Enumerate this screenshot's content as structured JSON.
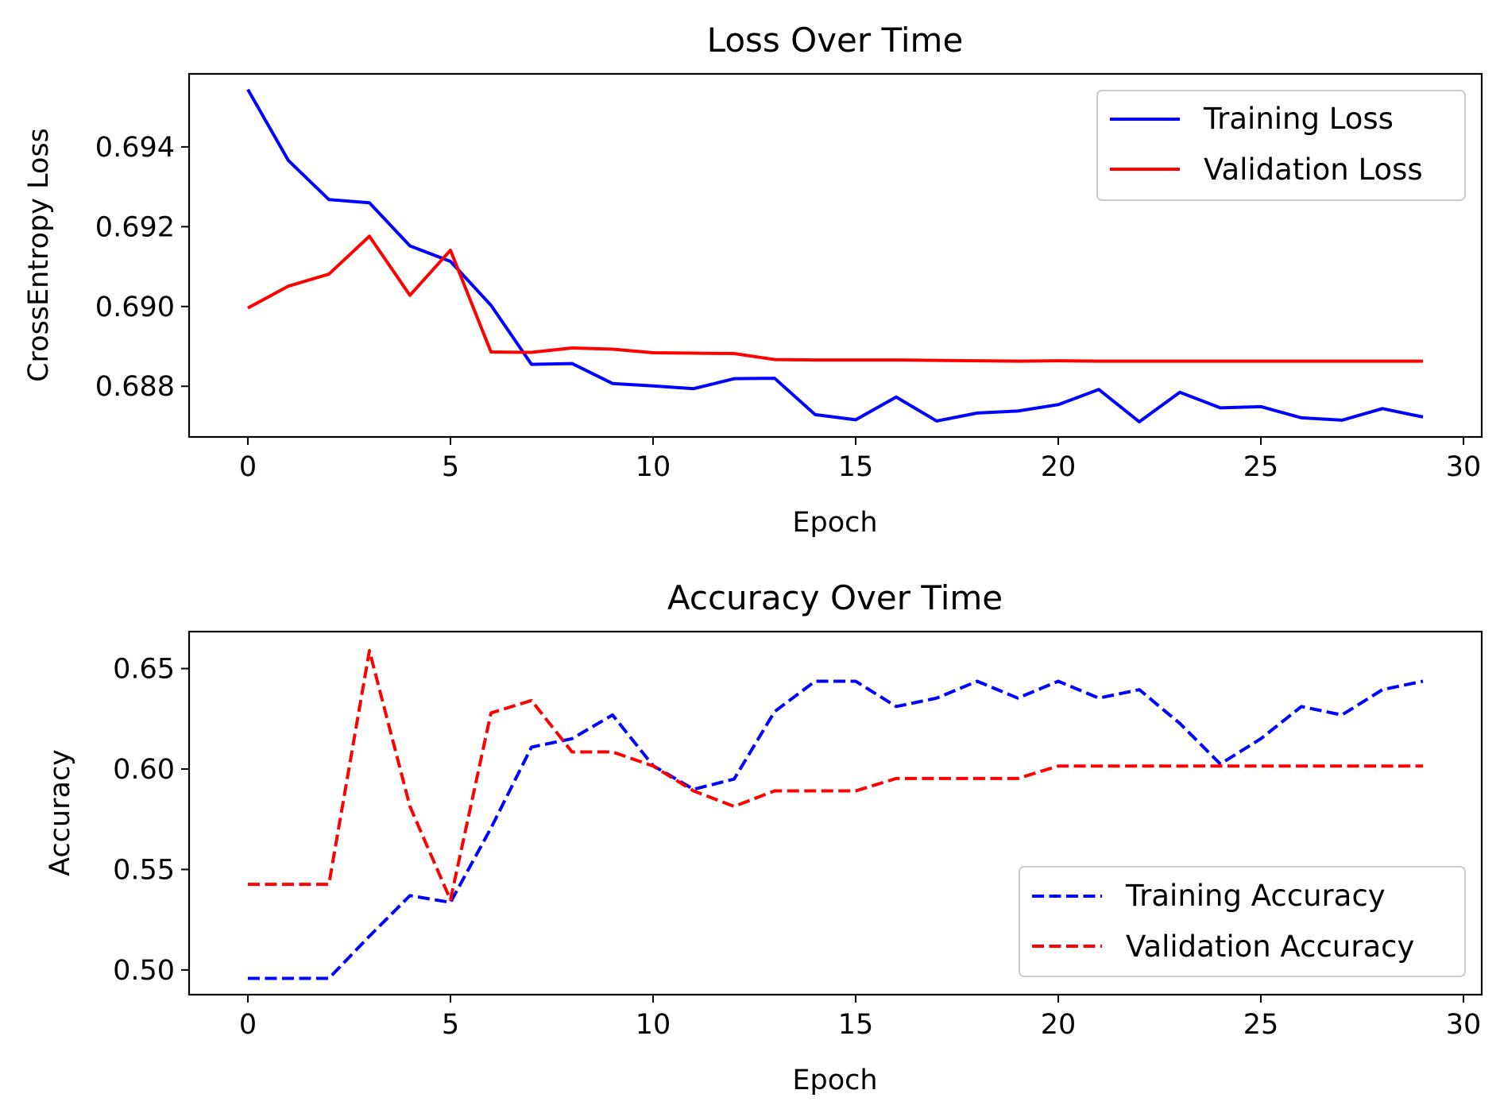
{
  "chart_data": [
    {
      "type": "line",
      "title": "Loss Over Time",
      "xlabel": "Epoch",
      "ylabel": "CrossEntropy Loss",
      "xlim": [
        -1.45,
        30.45
      ],
      "ylim": [
        0.68673,
        0.69583
      ],
      "xticks": [
        0,
        5,
        10,
        15,
        20,
        25,
        30
      ],
      "xtick_labels": [
        "0",
        "5",
        "10",
        "15",
        "20",
        "25",
        "30"
      ],
      "yticks": [
        0.688,
        0.69,
        0.692,
        0.694
      ],
      "ytick_labels": [
        "0.688",
        "0.690",
        "0.692",
        "0.694"
      ],
      "grid": false,
      "legend_position": "upper right",
      "x": [
        0,
        1,
        2,
        3,
        4,
        5,
        6,
        7,
        8,
        9,
        10,
        11,
        12,
        13,
        14,
        15,
        16,
        17,
        18,
        19,
        20,
        21,
        22,
        23,
        24,
        25,
        26,
        27,
        28,
        29
      ],
      "series": [
        {
          "name": "Training Loss",
          "color": "#0000ff",
          "dash": "solid",
          "values": [
            0.69544,
            0.69366,
            0.69268,
            0.6926,
            0.69152,
            0.69113,
            0.69003,
            0.68855,
            0.68857,
            0.68807,
            0.68801,
            0.68794,
            0.68819,
            0.6882,
            0.68729,
            0.68716,
            0.68773,
            0.68713,
            0.68733,
            0.68738,
            0.68754,
            0.68792,
            0.68711,
            0.68785,
            0.68746,
            0.68749,
            0.68721,
            0.68715,
            0.68744,
            0.68723
          ]
        },
        {
          "name": "Validation Loss",
          "color": "#ff0000",
          "dash": "solid",
          "values": [
            0.68996,
            0.69051,
            0.69081,
            0.69176,
            0.69028,
            0.69141,
            0.68886,
            0.68885,
            0.68896,
            0.68893,
            0.68884,
            0.68883,
            0.68882,
            0.68867,
            0.68866,
            0.68866,
            0.68866,
            0.68865,
            0.68864,
            0.68863,
            0.68864,
            0.68863,
            0.68863,
            0.68863,
            0.68863,
            0.68863,
            0.68863,
            0.68863,
            0.68863,
            0.68863
          ]
        }
      ]
    },
    {
      "type": "line",
      "title": "Accuracy Over Time",
      "xlabel": "Epoch",
      "ylabel": "Accuracy",
      "xlim": [
        -1.45,
        30.45
      ],
      "ylim": [
        0.4877,
        0.6684
      ],
      "xticks": [
        0,
        5,
        10,
        15,
        20,
        25,
        30
      ],
      "xtick_labels": [
        "0",
        "5",
        "10",
        "15",
        "20",
        "25",
        "30"
      ],
      "yticks": [
        0.5,
        0.55,
        0.6,
        0.65
      ],
      "ytick_labels": [
        "0.50",
        "0.55",
        "0.60",
        "0.65"
      ],
      "grid": false,
      "legend_position": "lower right",
      "x": [
        0,
        1,
        2,
        3,
        4,
        5,
        6,
        7,
        8,
        9,
        10,
        11,
        12,
        13,
        14,
        15,
        16,
        17,
        18,
        19,
        20,
        21,
        22,
        23,
        24,
        25,
        26,
        27,
        28,
        29
      ],
      "series": [
        {
          "name": "Training Accuracy",
          "color": "#0000ff",
          "dash": "dashed",
          "values": [
            0.4958,
            0.4958,
            0.4958,
            0.5168,
            0.537,
            0.5336,
            0.5706,
            0.6109,
            0.6151,
            0.6269,
            0.6017,
            0.5899,
            0.595,
            0.6286,
            0.6437,
            0.6437,
            0.6311,
            0.6353,
            0.6437,
            0.6353,
            0.6437,
            0.6353,
            0.6395,
            0.6227,
            0.6025,
            0.6151,
            0.6311,
            0.6269,
            0.6395,
            0.6437
          ]
        },
        {
          "name": "Validation Accuracy",
          "color": "#ff0000",
          "dash": "dashed",
          "values": [
            0.5426,
            0.5426,
            0.5426,
            0.6589,
            0.5814,
            0.5349,
            0.6279,
            0.6341,
            0.6085,
            0.6085,
            0.6015,
            0.5891,
            0.5814,
            0.5891,
            0.5891,
            0.5891,
            0.5953,
            0.5953,
            0.5953,
            0.5953,
            0.6015,
            0.6015,
            0.6015,
            0.6015,
            0.6015,
            0.6015,
            0.6015,
            0.6015,
            0.6015,
            0.6015
          ]
        }
      ]
    }
  ]
}
